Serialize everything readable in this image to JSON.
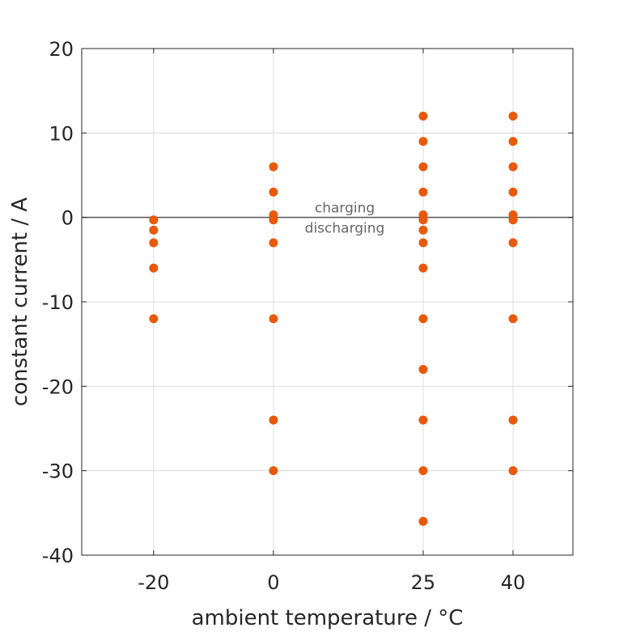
{
  "chart_data": {
    "type": "scatter",
    "title": "",
    "xlabel": "ambient temperature / °C",
    "ylabel": "constant current / A",
    "xlim": [
      -32,
      50
    ],
    "ylim": [
      -40,
      20
    ],
    "x_ticks": [
      -20,
      0,
      25,
      40
    ],
    "y_ticks": [
      20,
      10,
      0,
      -10,
      -20,
      -30,
      -40
    ],
    "grid": true,
    "reference_line_y": 0,
    "annotations": {
      "above": "charging",
      "below": "discharging"
    },
    "marker_color": "#E8590C",
    "series": [
      {
        "points": [
          {
            "x": -20,
            "y": -0.3
          },
          {
            "x": -20,
            "y": -1.5
          },
          {
            "x": -20,
            "y": -3
          },
          {
            "x": -20,
            "y": -6
          },
          {
            "x": -20,
            "y": -12
          },
          {
            "x": 0,
            "y": 6
          },
          {
            "x": 0,
            "y": 3
          },
          {
            "x": 0,
            "y": 0.3
          },
          {
            "x": 0,
            "y": -0.3
          },
          {
            "x": 0,
            "y": -3
          },
          {
            "x": 0,
            "y": -12
          },
          {
            "x": 0,
            "y": -24
          },
          {
            "x": 0,
            "y": -30
          },
          {
            "x": 25,
            "y": 12
          },
          {
            "x": 25,
            "y": 9
          },
          {
            "x": 25,
            "y": 6
          },
          {
            "x": 25,
            "y": 3
          },
          {
            "x": 25,
            "y": 0.3
          },
          {
            "x": 25,
            "y": -0.3
          },
          {
            "x": 25,
            "y": -1.5
          },
          {
            "x": 25,
            "y": -3
          },
          {
            "x": 25,
            "y": -6
          },
          {
            "x": 25,
            "y": -12
          },
          {
            "x": 25,
            "y": -18
          },
          {
            "x": 25,
            "y": -24
          },
          {
            "x": 25,
            "y": -30
          },
          {
            "x": 25,
            "y": -36
          },
          {
            "x": 40,
            "y": 12
          },
          {
            "x": 40,
            "y": 9
          },
          {
            "x": 40,
            "y": 6
          },
          {
            "x": 40,
            "y": 3
          },
          {
            "x": 40,
            "y": 0.3
          },
          {
            "x": 40,
            "y": -0.3
          },
          {
            "x": 40,
            "y": -3
          },
          {
            "x": 40,
            "y": -12
          },
          {
            "x": 40,
            "y": -24
          },
          {
            "x": 40,
            "y": -30
          }
        ]
      }
    ]
  }
}
